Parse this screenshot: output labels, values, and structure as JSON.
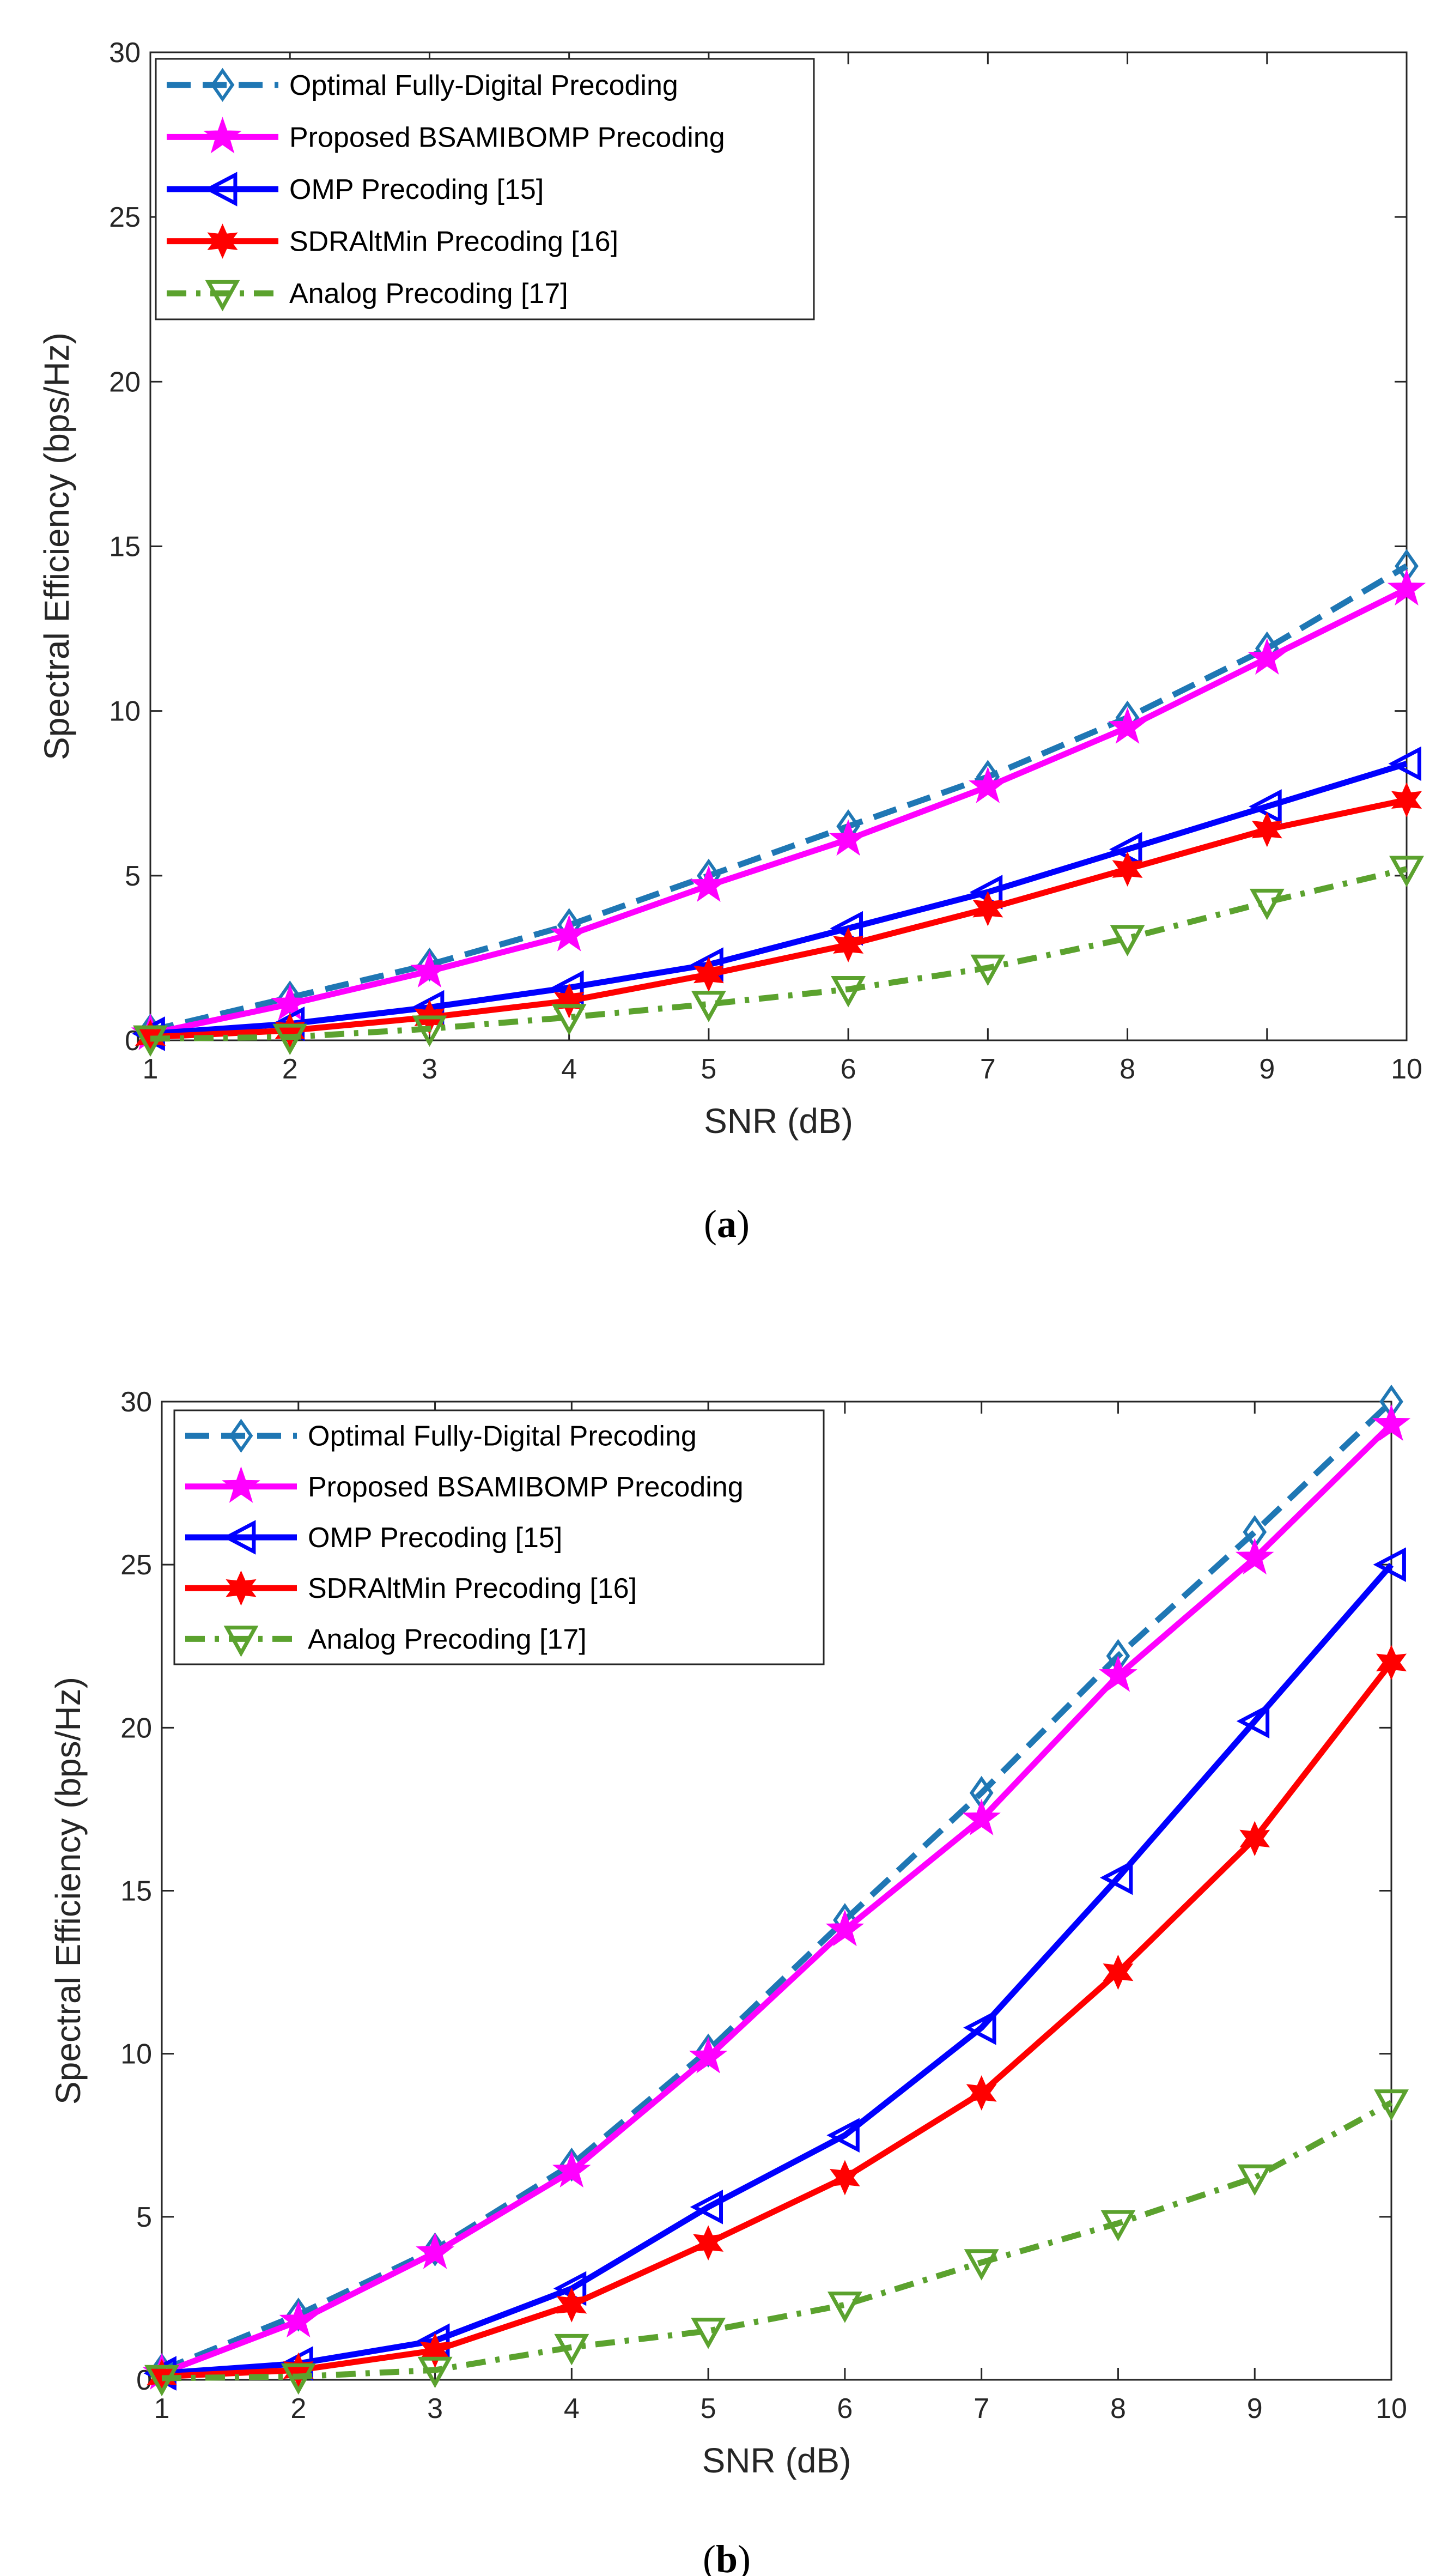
{
  "chart_data": [
    {
      "type": "line",
      "caption": "(a)",
      "caption_open": "(",
      "caption_letter": "a",
      "caption_close": ")",
      "xlabel": "SNR (dB)",
      "ylabel": "Spectral Efficiency (bps/Hz)",
      "xlim": [
        1,
        10
      ],
      "ylim": [
        0,
        30
      ],
      "xticks": [
        1,
        2,
        3,
        4,
        5,
        6,
        7,
        8,
        9,
        10
      ],
      "yticks": [
        0,
        5,
        10,
        15,
        20,
        25,
        30
      ],
      "grid": false,
      "legend_position": "top-left",
      "x": [
        1,
        2,
        3,
        4,
        5,
        6,
        7,
        8,
        9,
        10
      ],
      "series": [
        {
          "name": "Optimal Fully-Digital Precoding",
          "color": "#1f77b4",
          "marker": "diamond",
          "linestyle": "dashed",
          "values": [
            0.3,
            1.3,
            2.3,
            3.5,
            5.0,
            6.5,
            8.0,
            9.8,
            11.9,
            14.4
          ]
        },
        {
          "name": "Proposed BSAMIBOMP Precoding",
          "color": "#ff00ff",
          "marker": "star5",
          "linestyle": "solid",
          "values": [
            0.2,
            1.1,
            2.1,
            3.2,
            4.7,
            6.1,
            7.7,
            9.5,
            11.6,
            13.7
          ]
        },
        {
          "name": "OMP Precoding [15]",
          "color": "#0000ff",
          "marker": "triangle-left",
          "linestyle": "solid",
          "values": [
            0.2,
            0.5,
            1.0,
            1.6,
            2.3,
            3.4,
            4.5,
            5.8,
            7.1,
            8.4
          ]
        },
        {
          "name": "SDRAltMin Precoding [16]",
          "color": "#ff0000",
          "marker": "star6",
          "linestyle": "solid",
          "values": [
            0.1,
            0.3,
            0.7,
            1.2,
            2.0,
            2.9,
            4.0,
            5.2,
            6.4,
            7.3
          ]
        },
        {
          "name": "Analog Precoding [17]",
          "color": "#5ba22e",
          "marker": "triangle-down",
          "linestyle": "dashdot",
          "values": [
            0.05,
            0.1,
            0.35,
            0.7,
            1.1,
            1.55,
            2.2,
            3.1,
            4.2,
            5.2
          ]
        }
      ]
    },
    {
      "type": "line",
      "caption": "(b)",
      "caption_open": "(",
      "caption_letter": "b",
      "caption_close": ")",
      "xlabel": "SNR (dB)",
      "ylabel": "Spectral Efficiency (bps/Hz)",
      "xlim": [
        1,
        10
      ],
      "ylim": [
        0,
        30
      ],
      "xticks": [
        1,
        2,
        3,
        4,
        5,
        6,
        7,
        8,
        9,
        10
      ],
      "yticks": [
        0,
        5,
        10,
        15,
        20,
        25,
        30
      ],
      "grid": false,
      "legend_position": "top-left",
      "x": [
        1,
        2,
        3,
        4,
        5,
        6,
        7,
        8,
        9,
        10
      ],
      "series": [
        {
          "name": "Optimal Fully-Digital Precoding",
          "color": "#1f77b4",
          "marker": "diamond",
          "linestyle": "dashed",
          "values": [
            0.3,
            2.0,
            4.0,
            6.6,
            10.1,
            14.1,
            18.0,
            22.2,
            26.0,
            30.0
          ]
        },
        {
          "name": "Proposed BSAMIBOMP Precoding",
          "color": "#ff00ff",
          "marker": "star5",
          "linestyle": "solid",
          "values": [
            0.2,
            1.8,
            3.9,
            6.4,
            9.9,
            13.8,
            17.2,
            21.6,
            25.2,
            29.3
          ]
        },
        {
          "name": "OMP Precoding [15]",
          "color": "#0000ff",
          "marker": "triangle-left",
          "linestyle": "solid",
          "values": [
            0.2,
            0.5,
            1.2,
            2.8,
            5.3,
            7.5,
            10.8,
            15.4,
            20.2,
            25.0
          ]
        },
        {
          "name": "SDRAltMin Precoding [16]",
          "color": "#ff0000",
          "marker": "star6",
          "linestyle": "solid",
          "values": [
            0.1,
            0.3,
            0.9,
            2.3,
            4.2,
            6.2,
            8.8,
            12.5,
            16.6,
            22.0
          ]
        },
        {
          "name": "Analog Precoding [17]",
          "color": "#5ba22e",
          "marker": "triangle-down",
          "linestyle": "dashdot",
          "values": [
            0.05,
            0.1,
            0.3,
            1.0,
            1.5,
            2.3,
            3.6,
            4.8,
            6.2,
            8.5
          ]
        }
      ]
    }
  ]
}
